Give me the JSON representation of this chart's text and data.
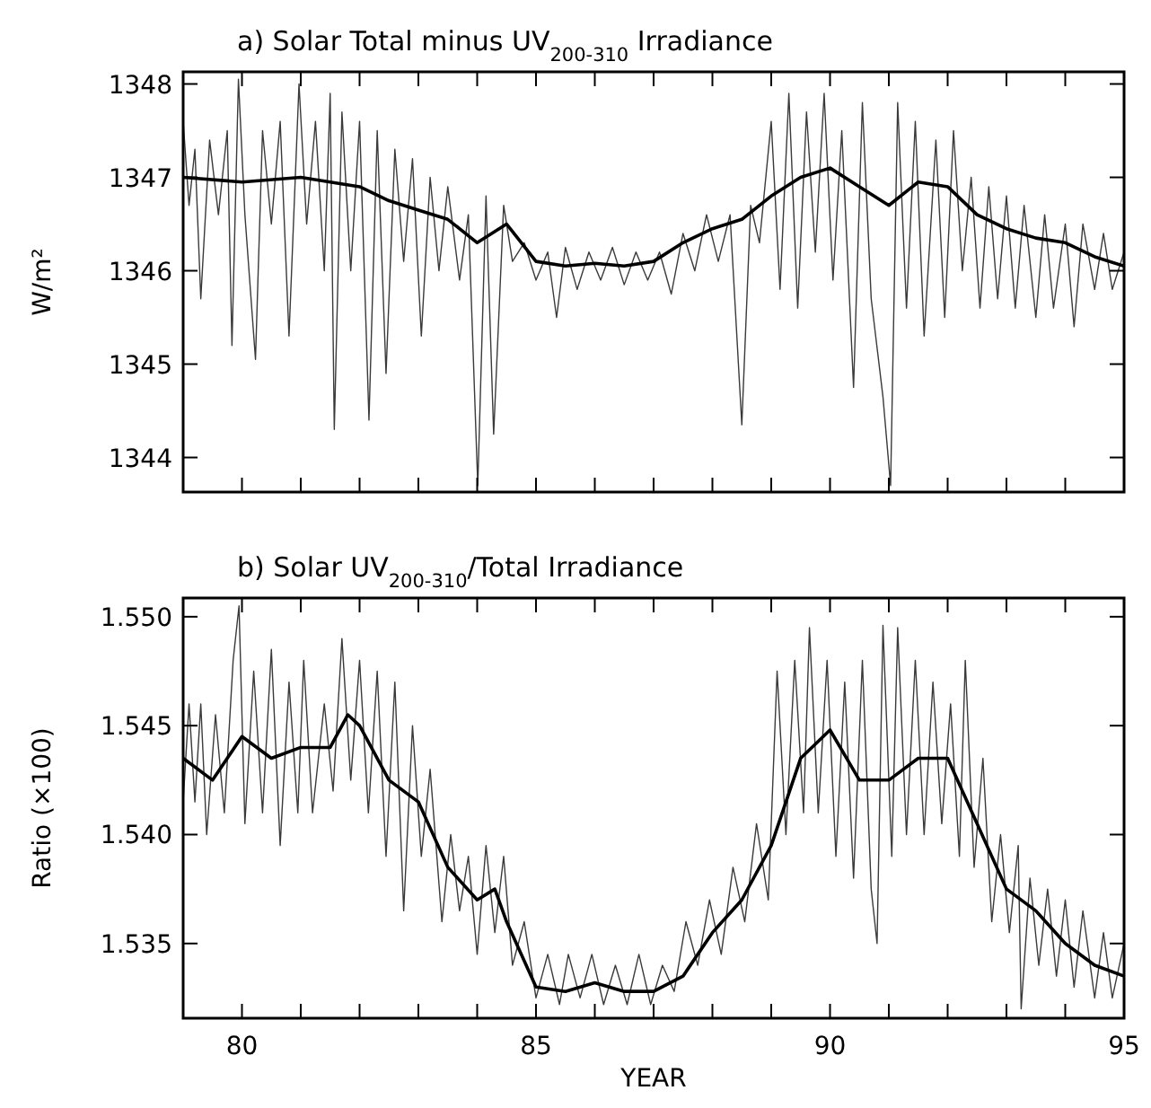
{
  "chart_data": [
    {
      "type": "line",
      "title": "a) Solar Total minus UV$_{200-310}$ Irradiance",
      "ylabel": "W/m²",
      "xlim": [
        79,
        95
      ],
      "xticks": [
        {
          "value": 80,
          "label": null
        },
        {
          "value": 81,
          "label": null
        },
        {
          "value": 82,
          "label": null
        },
        {
          "value": 83,
          "label": null
        },
        {
          "value": 84,
          "label": null
        },
        {
          "value": 85,
          "label": null
        },
        {
          "value": 86,
          "label": null
        },
        {
          "value": 87,
          "label": null
        },
        {
          "value": 88,
          "label": null
        },
        {
          "value": 89,
          "label": null
        },
        {
          "value": 90,
          "label": null
        },
        {
          "value": 91,
          "label": null
        },
        {
          "value": 92,
          "label": null
        },
        {
          "value": 93,
          "label": null
        },
        {
          "value": 94,
          "label": null
        }
      ],
      "ylim": [
        1343.63,
        1348.13
      ],
      "yticks": [
        1344,
        1345,
        1346,
        1347,
        1348
      ],
      "tick_labels": "y",
      "grid": false,
      "series": [
        {
          "color": "#3a3a3a",
          "x": [
            79.0,
            79.1,
            79.2,
            79.3,
            79.45,
            79.6,
            79.75,
            79.83,
            79.94,
            80.05,
            80.23,
            80.35,
            80.5,
            80.65,
            80.8,
            80.97,
            81.1,
            81.25,
            81.4,
            81.5,
            81.57,
            81.7,
            81.85,
            82.0,
            82.16,
            82.3,
            82.45,
            82.6,
            82.75,
            82.9,
            83.05,
            83.2,
            83.35,
            83.5,
            83.7,
            83.85,
            84.01,
            84.15,
            84.28,
            84.45,
            84.6,
            84.8,
            85.0,
            85.2,
            85.35,
            85.5,
            85.7,
            85.9,
            86.1,
            86.3,
            86.5,
            86.7,
            86.9,
            87.1,
            87.3,
            87.5,
            87.7,
            87.9,
            88.1,
            88.3,
            88.5,
            88.65,
            88.8,
            89.0,
            89.15,
            89.3,
            89.45,
            89.6,
            89.75,
            89.9,
            90.05,
            90.2,
            90.4,
            90.55,
            90.7,
            90.9,
            91.03,
            91.15,
            91.3,
            91.45,
            91.6,
            91.8,
            91.95,
            92.1,
            92.25,
            92.4,
            92.55,
            92.7,
            92.85,
            93.0,
            93.15,
            93.3,
            93.5,
            93.65,
            93.8,
            94.0,
            94.15,
            94.3,
            94.5,
            94.65,
            94.8,
            95.0
          ],
          "values": [
            1347.6,
            1346.7,
            1347.3,
            1345.7,
            1347.4,
            1346.6,
            1347.5,
            1345.2,
            1348.05,
            1346.6,
            1345.05,
            1347.5,
            1346.5,
            1347.6,
            1345.3,
            1348.0,
            1346.5,
            1347.6,
            1346.0,
            1347.9,
            1344.3,
            1347.7,
            1346.0,
            1347.6,
            1344.4,
            1347.5,
            1344.9,
            1347.3,
            1346.1,
            1347.2,
            1345.3,
            1347.0,
            1346.0,
            1346.9,
            1345.9,
            1346.6,
            1343.7,
            1346.8,
            1344.25,
            1346.7,
            1346.1,
            1346.3,
            1345.9,
            1346.2,
            1345.5,
            1346.25,
            1345.8,
            1346.2,
            1345.9,
            1346.25,
            1345.85,
            1346.2,
            1345.9,
            1346.2,
            1345.75,
            1346.4,
            1346.0,
            1346.6,
            1346.1,
            1346.6,
            1344.35,
            1346.7,
            1346.3,
            1347.6,
            1345.8,
            1347.9,
            1345.6,
            1347.7,
            1346.2,
            1347.9,
            1345.9,
            1347.5,
            1344.75,
            1347.8,
            1345.7,
            1344.65,
            1343.7,
            1347.8,
            1345.6,
            1347.6,
            1345.3,
            1347.4,
            1345.5,
            1347.5,
            1346.0,
            1347.0,
            1345.6,
            1346.9,
            1345.7,
            1346.8,
            1345.6,
            1346.7,
            1345.5,
            1346.6,
            1345.6,
            1346.5,
            1345.4,
            1346.5,
            1345.8,
            1346.4,
            1345.8,
            1346.2
          ]
        },
        {
          "color": "#000000",
          "x": [
            79,
            80,
            81,
            82,
            82.5,
            83,
            83.5,
            84,
            84.5,
            85,
            85.5,
            86,
            86.5,
            87,
            87.5,
            88,
            88.5,
            89,
            89.5,
            90,
            90.5,
            91,
            91.5,
            92,
            92.5,
            93,
            93.5,
            94,
            94.5,
            95
          ],
          "values": [
            1347.0,
            1346.95,
            1347.0,
            1346.9,
            1346.75,
            1346.65,
            1346.55,
            1346.3,
            1346.5,
            1346.1,
            1346.05,
            1346.08,
            1346.05,
            1346.1,
            1346.3,
            1346.45,
            1346.55,
            1346.8,
            1347.0,
            1347.1,
            1346.9,
            1346.7,
            1346.95,
            1346.9,
            1346.6,
            1346.45,
            1346.35,
            1346.3,
            1346.15,
            1346.05
          ]
        }
      ]
    },
    {
      "type": "line",
      "title": "b) Solar UV$_{200-310}$/Total Irradiance",
      "xlabel": "YEAR",
      "ylabel": "Ratio (×100)",
      "xlim": [
        79,
        95
      ],
      "xticks": [
        80,
        {
          "value": 81,
          "label": null
        },
        {
          "value": 82,
          "label": null
        },
        {
          "value": 83,
          "label": null
        },
        {
          "value": 84,
          "label": null
        },
        85,
        {
          "value": 86,
          "label": null
        },
        {
          "value": 87,
          "label": null
        },
        {
          "value": 88,
          "label": null
        },
        {
          "value": 89,
          "label": null
        },
        90,
        {
          "value": 91,
          "label": null
        },
        {
          "value": 92,
          "label": null
        },
        {
          "value": 93,
          "label": null
        },
        {
          "value": 94,
          "label": null
        },
        95
      ],
      "ylim": [
        1.53157,
        1.55086
      ],
      "yticks": [
        {
          "value": 1.535,
          "label": "1.535"
        },
        {
          "value": 1.54,
          "label": "1.540"
        },
        {
          "value": 1.545,
          "label": "1.545"
        },
        {
          "value": 1.55,
          "label": "1.550"
        }
      ],
      "grid": false,
      "series": [
        {
          "color": "#3a3a3a",
          "x": [
            79.0,
            79.1,
            79.2,
            79.3,
            79.4,
            79.55,
            79.7,
            79.85,
            79.95,
            80.05,
            80.2,
            80.35,
            80.5,
            80.65,
            80.8,
            80.95,
            81.05,
            81.2,
            81.4,
            81.55,
            81.7,
            81.85,
            82.0,
            82.15,
            82.3,
            82.45,
            82.6,
            82.75,
            82.9,
            83.05,
            83.2,
            83.4,
            83.55,
            83.7,
            83.85,
            84.0,
            84.15,
            84.3,
            84.45,
            84.6,
            84.8,
            85.0,
            85.2,
            85.4,
            85.55,
            85.75,
            85.95,
            86.15,
            86.35,
            86.55,
            86.75,
            86.95,
            87.15,
            87.35,
            87.55,
            87.75,
            87.95,
            88.15,
            88.35,
            88.55,
            88.75,
            88.95,
            89.1,
            89.25,
            89.4,
            89.55,
            89.65,
            89.8,
            89.95,
            90.1,
            90.25,
            90.4,
            90.55,
            90.7,
            90.8,
            90.9,
            91.05,
            91.15,
            91.3,
            91.45,
            91.6,
            91.75,
            91.9,
            92.05,
            92.2,
            92.3,
            92.45,
            92.6,
            92.75,
            92.9,
            93.05,
            93.2,
            93.25,
            93.4,
            93.55,
            93.7,
            93.85,
            94.0,
            94.15,
            94.3,
            94.5,
            94.65,
            94.8,
            95.0
          ],
          "values": [
            1.5415,
            1.546,
            1.5415,
            1.546,
            1.54,
            1.5455,
            1.541,
            1.548,
            1.5505,
            1.5405,
            1.5475,
            1.541,
            1.5485,
            1.5395,
            1.547,
            1.541,
            1.548,
            1.541,
            1.546,
            1.542,
            1.549,
            1.5425,
            1.548,
            1.541,
            1.5475,
            1.539,
            1.547,
            1.5365,
            1.545,
            1.539,
            1.543,
            1.536,
            1.54,
            1.5365,
            1.539,
            1.5345,
            1.5395,
            1.5355,
            1.539,
            1.534,
            1.536,
            1.5325,
            1.5345,
            1.5322,
            1.5345,
            1.5325,
            1.5345,
            1.5322,
            1.534,
            1.5322,
            1.5345,
            1.5322,
            1.534,
            1.5328,
            1.536,
            1.534,
            1.537,
            1.5345,
            1.5385,
            1.536,
            1.5405,
            1.537,
            1.5475,
            1.54,
            1.548,
            1.541,
            1.5495,
            1.541,
            1.548,
            1.539,
            1.547,
            1.538,
            1.548,
            1.5375,
            1.535,
            1.5496,
            1.539,
            1.5495,
            1.54,
            1.548,
            1.54,
            1.547,
            1.5405,
            1.546,
            1.539,
            1.548,
            1.5385,
            1.5435,
            1.536,
            1.54,
            1.5355,
            1.5395,
            1.532,
            1.538,
            1.534,
            1.5375,
            1.5335,
            1.537,
            1.533,
            1.5365,
            1.5325,
            1.5355,
            1.5325,
            1.535
          ]
        },
        {
          "color": "#000000",
          "x": [
            79,
            79.5,
            80,
            80.5,
            81,
            81.5,
            81.8,
            82,
            82.5,
            83,
            83.5,
            84,
            84.3,
            84.5,
            85,
            85.5,
            86,
            86.5,
            87,
            87.5,
            88,
            88.5,
            89,
            89.5,
            90,
            90.5,
            91,
            91.5,
            92,
            92.5,
            93,
            93.5,
            94,
            94.5,
            95
          ],
          "values": [
            1.5435,
            1.5425,
            1.5445,
            1.5435,
            1.544,
            1.544,
            1.5455,
            1.545,
            1.5425,
            1.5415,
            1.5385,
            1.537,
            1.5375,
            1.536,
            1.533,
            1.5328,
            1.5332,
            1.5328,
            1.5328,
            1.5335,
            1.5355,
            1.537,
            1.5395,
            1.5435,
            1.5448,
            1.5425,
            1.5425,
            1.5435,
            1.5435,
            1.5405,
            1.5375,
            1.5365,
            1.535,
            1.534,
            1.5335
          ]
        }
      ]
    }
  ]
}
